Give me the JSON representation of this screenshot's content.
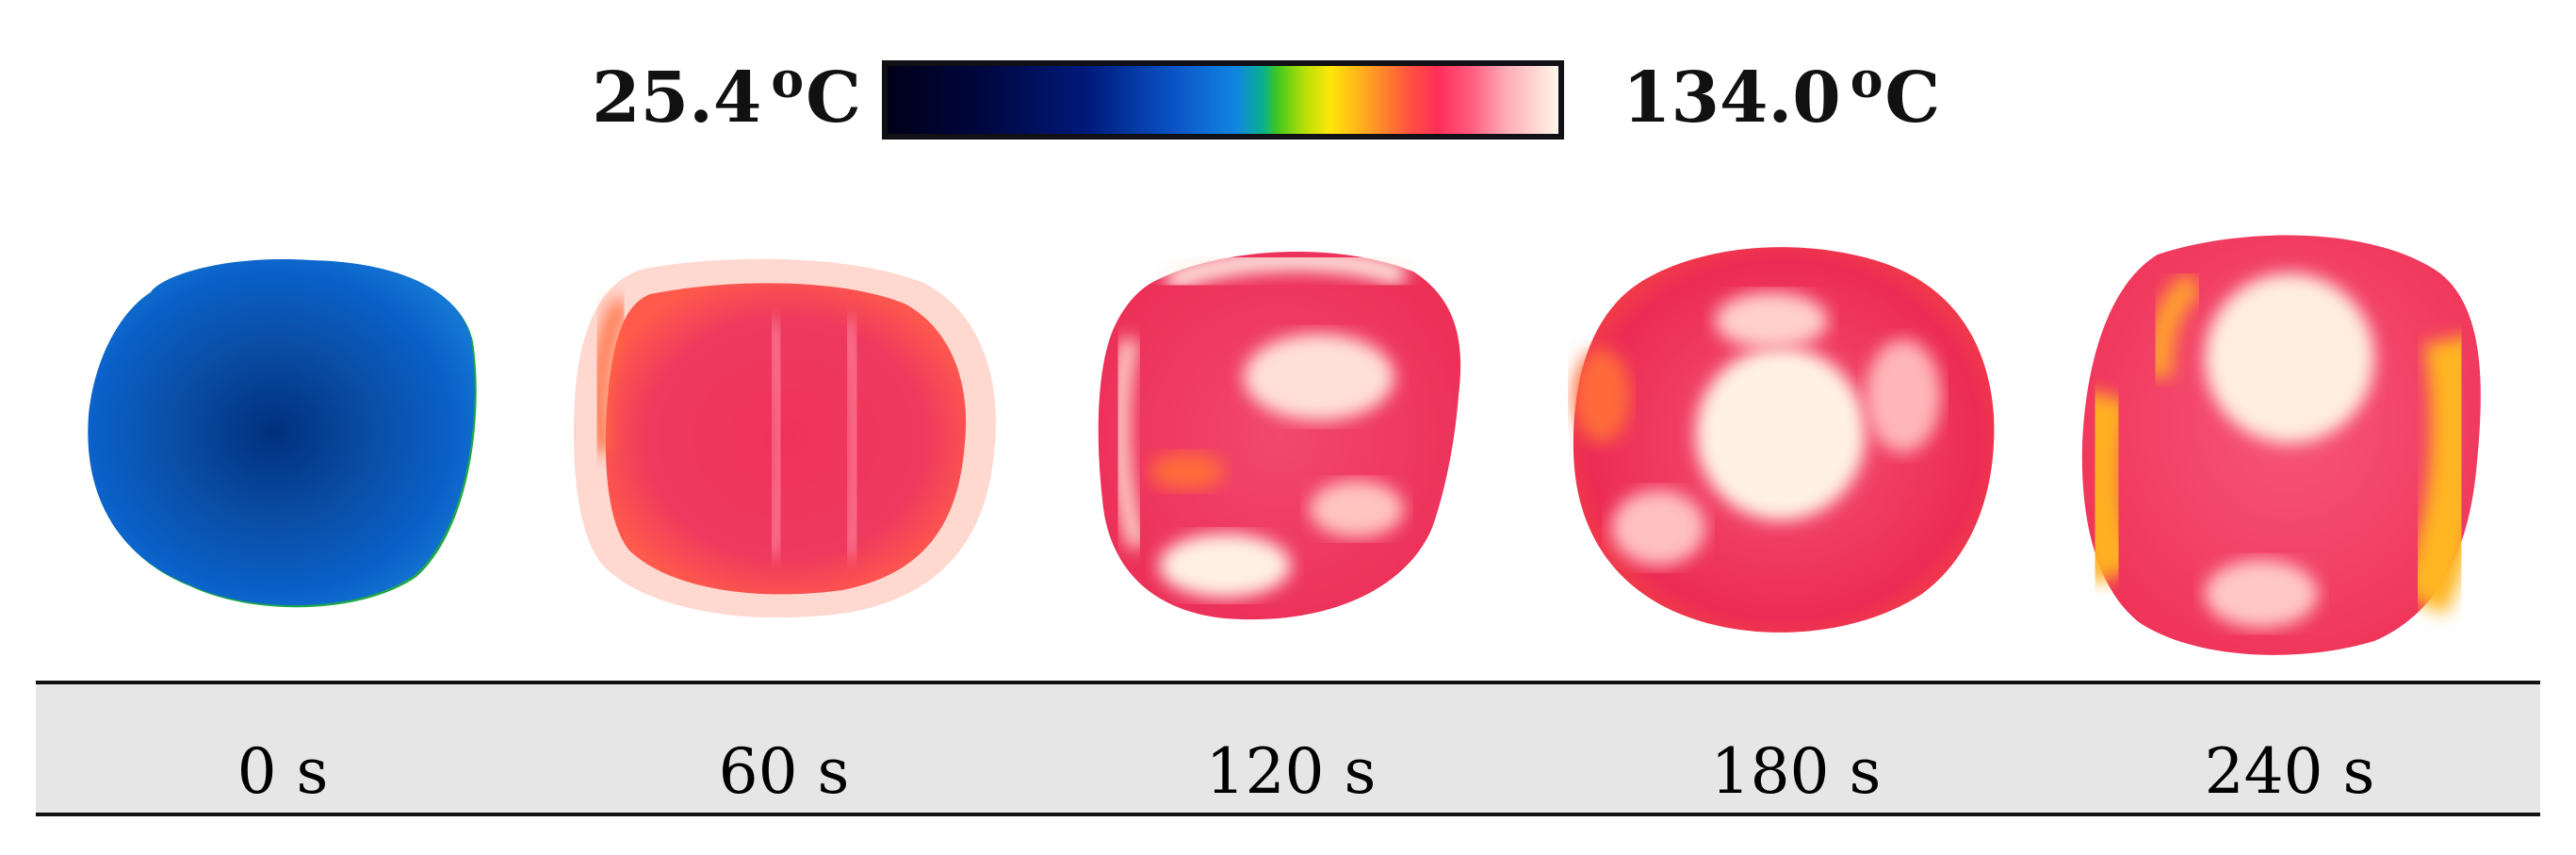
{
  "color_scale": {
    "min_value": "25.4",
    "max_value": "134.0",
    "degree_symbol": "o",
    "unit": "C",
    "palette": "iron-rainbow",
    "colors": {
      "cold": "#0a55c8",
      "mid": "#ffe60a",
      "hot": "#ff2e59",
      "hottest": "#fff6ea"
    }
  },
  "samples": [
    {
      "time_label": "0 s",
      "appearance": "blue"
    },
    {
      "time_label": "60 s",
      "appearance": "red"
    },
    {
      "time_label": "120 s",
      "appearance": "red-white"
    },
    {
      "time_label": "180 s",
      "appearance": "red-white"
    },
    {
      "time_label": "240 s",
      "appearance": "red-yellow-white"
    }
  ]
}
